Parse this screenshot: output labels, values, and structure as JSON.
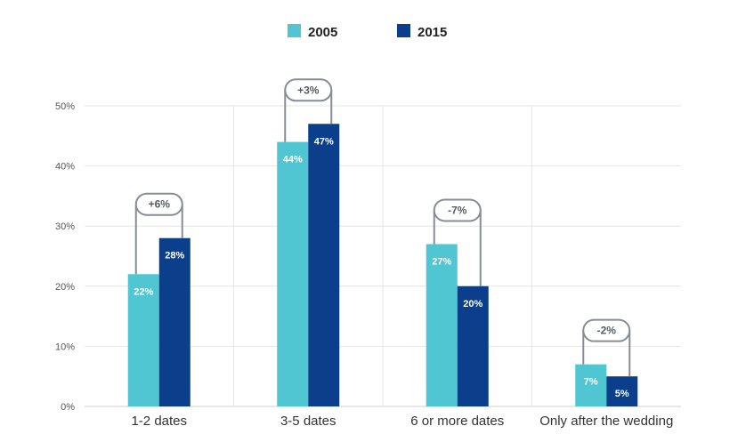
{
  "legend": {
    "placement": "top-center",
    "items": [
      {
        "label": "2005",
        "color": "#4fc6d1"
      },
      {
        "label": "2015",
        "color": "#0b3f8c"
      }
    ]
  },
  "colors": {
    "series_2005": "#4fc6d1",
    "series_2015": "#0b3f8c",
    "grid": "#e6e6e6",
    "bracket": "#888c96"
  },
  "chart_data": {
    "type": "bar",
    "categories": [
      "1-2 dates",
      "3-5 dates",
      "6 or more dates",
      "Only after the wedding"
    ],
    "series": [
      {
        "name": "2005",
        "values": [
          22,
          44,
          27,
          7
        ],
        "labels": [
          "22%",
          "44%",
          "27%",
          "7%"
        ]
      },
      {
        "name": "2015",
        "values": [
          28,
          47,
          20,
          5
        ],
        "labels": [
          "28%",
          "47%",
          "20%",
          "5%"
        ]
      }
    ],
    "differences": [
      "+6%",
      "+3%",
      "-7%",
      "-2%"
    ],
    "ylim": [
      0,
      50
    ],
    "yticks": [
      "0%",
      "10%",
      "20%",
      "30%",
      "40%",
      "50%"
    ],
    "title": "",
    "xlabel": "",
    "ylabel": "",
    "grid": true
  }
}
